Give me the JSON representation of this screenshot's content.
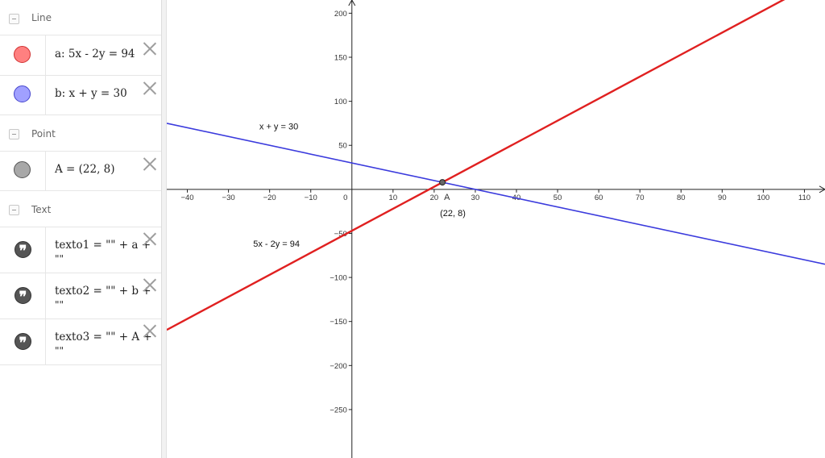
{
  "algebra": {
    "groups": {
      "line": {
        "label": "Line"
      },
      "point": {
        "label": "Point"
      },
      "text": {
        "label": "Text"
      }
    },
    "items": {
      "a": {
        "definition": "a: 5x - 2y = 94",
        "color": "#ff8080"
      },
      "b": {
        "definition": "b: x + y = 30",
        "color": "#9d9dff"
      },
      "A": {
        "definition": "A = (22, 8)",
        "color": "#a8a8a8"
      },
      "texto1": {
        "definition": "texto1 = \"\" + a +",
        "continuation": "\"\"",
        "icon": "quote-icon"
      },
      "texto2": {
        "definition": "texto2 = \"\" + b +",
        "continuation": "\"\"",
        "icon": "quote-icon"
      },
      "texto3": {
        "definition": "texto3 = \"\" + A +",
        "continuation": "\"\"",
        "icon": "quote-icon"
      }
    }
  },
  "graphics": {
    "line_a": {
      "color": "#e02020",
      "equation": {
        "a": 5,
        "b": -2,
        "c": 94
      },
      "caption": "5x - 2y = 94"
    },
    "line_b": {
      "color": "#3b3bdd",
      "equation": {
        "a": 1,
        "b": 1,
        "c": 30
      },
      "caption": "x + y = 30"
    },
    "point_A": {
      "name": "A",
      "x": 22,
      "y": 8,
      "caption": "(22, 8)",
      "color": "#666666"
    },
    "x_ticks": [
      "−40",
      "−30",
      "−20",
      "−10",
      "0",
      "10",
      "20",
      "30",
      "40",
      "50",
      "60",
      "70",
      "80",
      "90",
      "100",
      "110"
    ],
    "y_ticks_pos": [
      "50",
      "100",
      "150",
      "200"
    ],
    "y_ticks_neg": [
      "−50",
      "−100",
      "−150",
      "−200",
      "−250"
    ],
    "x_range": [
      -45,
      115
    ],
    "y_range": [
      -305,
      215
    ]
  },
  "chart_data": {
    "type": "line",
    "series": [
      {
        "name": "5x - 2y = 94",
        "x": [
          -45,
          115
        ],
        "y": [
          -159.5,
          240.5
        ]
      },
      {
        "name": "x + y = 30",
        "x": [
          -45,
          115
        ],
        "y": [
          75,
          -85
        ]
      }
    ],
    "points": [
      {
        "label": "A",
        "x": 22,
        "y": 8
      }
    ],
    "xlim": [
      -45,
      115
    ],
    "ylim": [
      -305,
      215
    ],
    "grid": false
  }
}
